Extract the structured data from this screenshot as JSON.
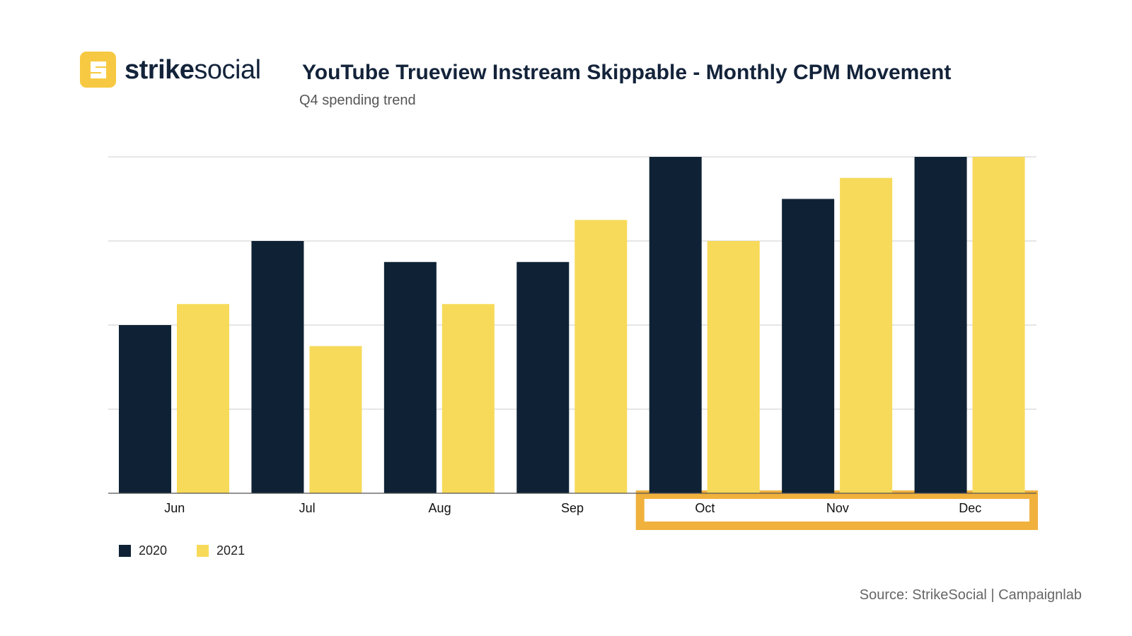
{
  "header": {
    "logo_strong": "strike",
    "logo_light": "social",
    "logo_mark_letter": "S",
    "title": "YouTube Trueview Instream Skippable - Monthly CPM Movement",
    "subtitle": "Q4 spending trend"
  },
  "colors": {
    "series_2020": "#0f2235",
    "series_2021": "#f7da59",
    "highlight": "#f0b13d",
    "grid": "#cccccc",
    "brand": "#f7c942"
  },
  "chart_data": {
    "type": "bar",
    "title": "YouTube Trueview Instream Skippable - Monthly CPM Movement",
    "subtitle": "Q4 spending trend",
    "categories": [
      "Jun",
      "Jul",
      "Aug",
      "Sep",
      "Oct",
      "Nov",
      "Dec"
    ],
    "series": [
      {
        "name": "2020",
        "values": [
          2.0,
          3.0,
          2.75,
          2.75,
          4.0,
          3.5,
          4.0
        ]
      },
      {
        "name": "2021",
        "values": [
          2.25,
          1.75,
          2.25,
          3.25,
          3.0,
          3.75,
          4.0
        ]
      }
    ],
    "ylim": [
      0,
      4
    ],
    "y_gridlines": 4,
    "y_tick_labels_shown": false,
    "highlighted_categories": [
      "Oct",
      "Nov",
      "Dec"
    ],
    "legend_position": "bottom-left",
    "xlabel": "",
    "ylabel": ""
  },
  "legend": {
    "items": [
      {
        "label": "2020"
      },
      {
        "label": "2021"
      }
    ]
  },
  "footer": {
    "source": "Source:  StrikeSocial | Campaignlab"
  }
}
